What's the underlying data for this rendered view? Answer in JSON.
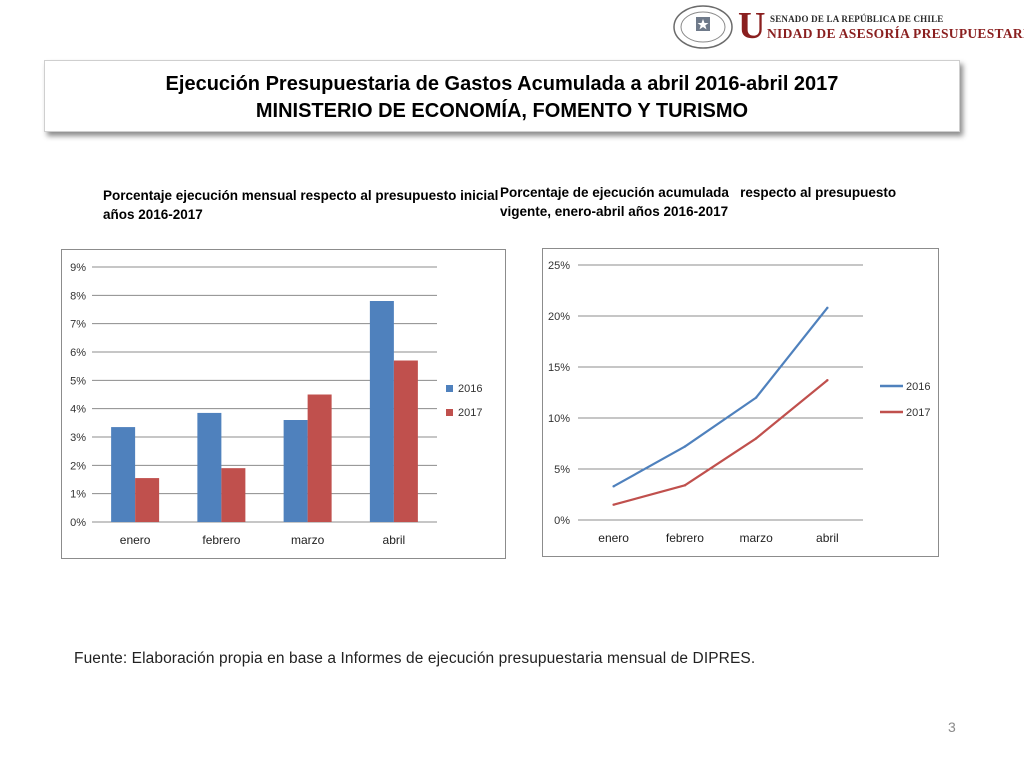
{
  "header": {
    "logo_seal_text": "REPÚBLICA DE CHILE SENADO",
    "brand_initial": "U",
    "brand_top": "SENADO DE LA REPÚBLICA DE CHILE",
    "brand_rest": "NIDAD DE ASESORÍA PRESUPUESTARIA"
  },
  "title": {
    "line1": "Ejecución Presupuestaria de Gastos Acumulada a abril 2016-abril 2017",
    "line2": "MINISTERIO DE ECONOMÍA, FOMENTO Y TURISMO"
  },
  "colors": {
    "s2016": "#4f81bd",
    "s2017": "#c0504d"
  },
  "chart_data": [
    {
      "type": "bar",
      "title": "Porcentaje ejecución mensual respecto al presupuesto inicial años 2016-2017",
      "title_line1": "Porcentaje ejecución mensual respecto al presupuesto inicial",
      "title_line2": "años 2016-2017",
      "categories": [
        "enero",
        "febrero",
        "marzo",
        "abril"
      ],
      "series": [
        {
          "name": "2016",
          "values": [
            3.35,
            3.85,
            3.6,
            7.8
          ]
        },
        {
          "name": "2017",
          "values": [
            1.55,
            1.9,
            4.5,
            5.7
          ]
        }
      ],
      "ylim": [
        0,
        9
      ],
      "yticks": [
        "0%",
        "1%",
        "2%",
        "3%",
        "4%",
        "5%",
        "6%",
        "7%",
        "8%",
        "9%"
      ],
      "grid": true,
      "legend_position": "right"
    },
    {
      "type": "line",
      "title": "Porcentaje de ejecución acumulada respecto al presupuesto vigente, enero-abril años 2016-2017",
      "title_line1": "Porcentaje de ejecución acumulada   respecto al presupuesto",
      "title_line2": "vigente, enero-abril años 2016-2017",
      "categories": [
        "enero",
        "febrero",
        "marzo",
        "abril"
      ],
      "series": [
        {
          "name": "2016",
          "values": [
            3.3,
            7.2,
            12.0,
            20.8
          ]
        },
        {
          "name": "2017",
          "values": [
            1.5,
            3.4,
            8.0,
            13.7
          ]
        }
      ],
      "ylim": [
        0,
        25
      ],
      "yticks": [
        "0%",
        "5%",
        "10%",
        "15%",
        "20%",
        "25%"
      ],
      "grid": true,
      "legend_position": "right"
    }
  ],
  "footer": {
    "source": "Fuente: Elaboración propia en base  a Informes de ejecución presupuestaria mensual de DIPRES.",
    "page_number": "3"
  }
}
